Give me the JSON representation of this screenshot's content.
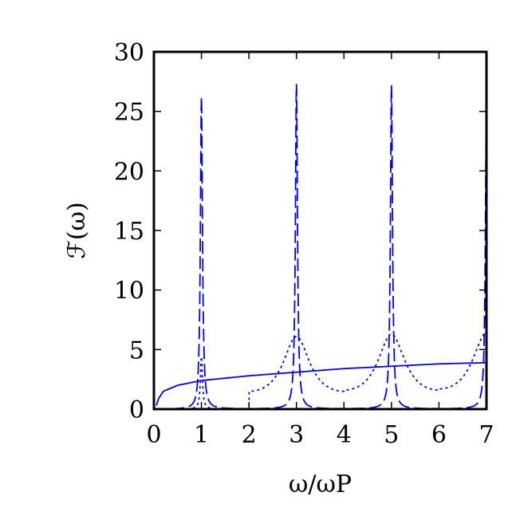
{
  "chart_data": {
    "type": "line",
    "xlabel": "ω/ωP",
    "ylabel": "ℱ(ω)",
    "xlim": [
      0,
      7
    ],
    "ylim": [
      0,
      30
    ],
    "xticks": [
      "0",
      "1",
      "2",
      "3",
      "4",
      "5",
      "6",
      "7"
    ],
    "yticks": [
      "0",
      "5",
      "10",
      "15",
      "20",
      "25",
      "30"
    ],
    "grid": false,
    "legend": "none",
    "color": "#0000ff",
    "series": [
      {
        "style": "dashed",
        "peaks_at": [
          1,
          3,
          5,
          7
        ],
        "peak_heights": [
          26.2,
          27.3,
          27.2,
          26.4
        ],
        "minima_at": [
          0,
          2,
          4,
          6
        ],
        "minimum_value": 0.0
      },
      {
        "style": "dotted",
        "peaks_at": [
          1,
          3,
          5,
          7
        ],
        "peak_heights": [
          4.4,
          6.1,
          6.3,
          6.4
        ],
        "minima_at": [
          0,
          2,
          4,
          6
        ],
        "minimum_values": [
          0.0,
          1.5,
          1.6,
          1.7
        ]
      },
      {
        "style": "solid",
        "x": [
          0.1,
          0.2,
          0.5,
          1,
          2,
          3,
          4,
          5,
          6,
          7
        ],
        "y": [
          0.9,
          1.5,
          2.0,
          2.4,
          2.8,
          3.1,
          3.4,
          3.6,
          3.8,
          3.9
        ]
      }
    ]
  }
}
